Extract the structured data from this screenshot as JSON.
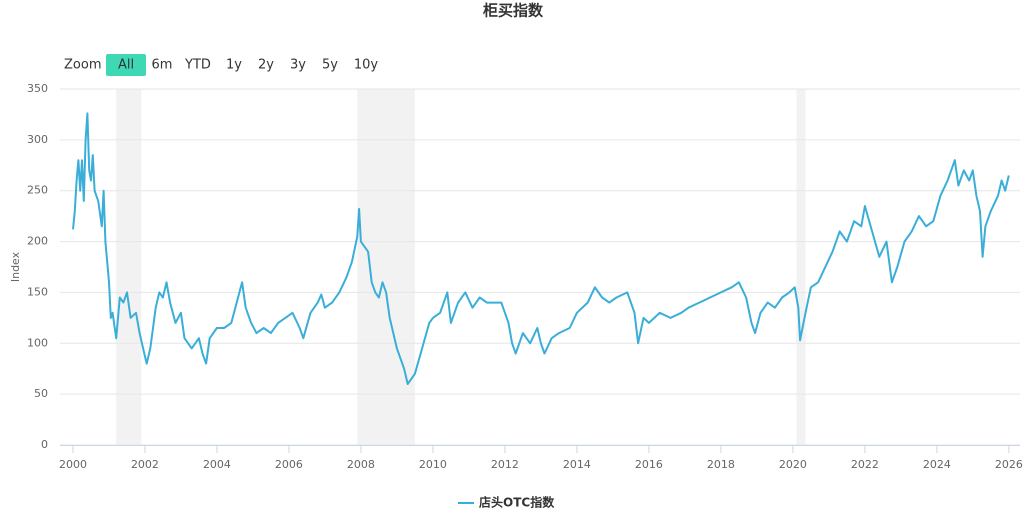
{
  "chart_data": {
    "type": "line",
    "title": "柜买指数",
    "range_selector": {
      "label": "Zoom",
      "buttons": [
        "All",
        "6m",
        "YTD",
        "1y",
        "2y",
        "3y",
        "5y",
        "10y"
      ],
      "selected": 0
    },
    "y_label": "Index",
    "xlim": [
      1999.64,
      2026.31
    ],
    "xticks": [
      2000,
      2002,
      2004,
      2006,
      2008,
      2010,
      2012,
      2014,
      2016,
      2018,
      2020,
      2022,
      2024,
      2026
    ],
    "ylim": [
      0,
      350
    ],
    "yticks": [
      0,
      50,
      100,
      150,
      200,
      250,
      300,
      350
    ],
    "grid": true,
    "plot_bands": [
      [
        2001.2,
        2001.9
      ],
      [
        2007.9,
        2009.5
      ],
      [
        2020.1,
        2020.35
      ]
    ],
    "x": [
      2000.0,
      2000.05,
      2000.1,
      2000.15,
      2000.2,
      2000.25,
      2000.3,
      2000.35,
      2000.4,
      2000.45,
      2000.5,
      2000.55,
      2000.6,
      2000.7,
      2000.8,
      2000.85,
      2000.9,
      2001.0,
      2001.05,
      2001.1,
      2001.2,
      2001.3,
      2001.4,
      2001.5,
      2001.6,
      2001.75,
      2001.85,
      2001.95,
      2002.05,
      2002.15,
      2002.3,
      2002.4,
      2002.5,
      2002.6,
      2002.7,
      2002.85,
      2003.0,
      2003.1,
      2003.2,
      2003.3,
      2003.5,
      2003.6,
      2003.7,
      2003.8,
      2004.0,
      2004.2,
      2004.4,
      2004.55,
      2004.7,
      2004.8,
      2004.95,
      2005.1,
      2005.3,
      2005.5,
      2005.7,
      2005.9,
      2006.1,
      2006.3,
      2006.4,
      2006.6,
      2006.8,
      2006.9,
      2007.0,
      2007.2,
      2007.4,
      2007.6,
      2007.75,
      2007.9,
      2007.95,
      2008.0,
      2008.1,
      2008.2,
      2008.3,
      2008.4,
      2008.5,
      2008.6,
      2008.7,
      2008.8,
      2008.9,
      2009.0,
      2009.2,
      2009.3,
      2009.5,
      2009.7,
      2009.9,
      2010.0,
      2010.2,
      2010.4,
      2010.5,
      2010.7,
      2010.9,
      2011.1,
      2011.3,
      2011.5,
      2011.7,
      2011.9,
      2012.1,
      2012.2,
      2012.3,
      2012.5,
      2012.7,
      2012.9,
      2013.0,
      2013.1,
      2013.3,
      2013.5,
      2013.8,
      2014.0,
      2014.3,
      2014.5,
      2014.7,
      2014.9,
      2015.1,
      2015.4,
      2015.6,
      2015.7,
      2015.85,
      2016.0,
      2016.3,
      2016.6,
      2016.9,
      2017.1,
      2017.4,
      2017.7,
      2018.0,
      2018.3,
      2018.5,
      2018.7,
      2018.85,
      2018.95,
      2019.1,
      2019.3,
      2019.5,
      2019.7,
      2019.9,
      2020.05,
      2020.15,
      2020.2,
      2020.35,
      2020.5,
      2020.7,
      2020.9,
      2021.1,
      2021.3,
      2021.5,
      2021.7,
      2021.9,
      2022.0,
      2022.2,
      2022.4,
      2022.6,
      2022.75,
      2022.9,
      2023.1,
      2023.3,
      2023.5,
      2023.7,
      2023.9,
      2024.1,
      2024.3,
      2024.5,
      2024.6,
      2024.75,
      2024.9,
      2025.0,
      2025.1,
      2025.2,
      2025.27,
      2025.35,
      2025.5,
      2025.7,
      2025.8,
      2025.9,
      2026.0
    ],
    "series": [
      {
        "name": "店头OTC指数",
        "color": "#3aaed8",
        "values": [
          212,
          230,
          260,
          280,
          250,
          280,
          240,
          300,
          326,
          270,
          260,
          285,
          250,
          240,
          215,
          250,
          200,
          160,
          125,
          130,
          105,
          145,
          140,
          150,
          125,
          130,
          110,
          95,
          80,
          95,
          135,
          150,
          145,
          160,
          140,
          120,
          130,
          105,
          100,
          95,
          105,
          90,
          80,
          105,
          115,
          115,
          120,
          140,
          160,
          135,
          120,
          110,
          115,
          110,
          120,
          125,
          130,
          115,
          105,
          130,
          140,
          148,
          135,
          140,
          150,
          165,
          180,
          205,
          232,
          200,
          195,
          190,
          160,
          150,
          145,
          160,
          150,
          125,
          110,
          95,
          75,
          60,
          70,
          95,
          120,
          125,
          130,
          150,
          120,
          140,
          150,
          135,
          145,
          140,
          140,
          140,
          120,
          100,
          90,
          110,
          100,
          115,
          100,
          90,
          105,
          110,
          115,
          130,
          140,
          155,
          145,
          140,
          145,
          150,
          130,
          100,
          125,
          120,
          130,
          125,
          130,
          135,
          140,
          145,
          150,
          155,
          160,
          145,
          120,
          110,
          130,
          140,
          135,
          145,
          150,
          155,
          135,
          103,
          130,
          155,
          160,
          175,
          190,
          210,
          200,
          220,
          215,
          235,
          210,
          185,
          200,
          160,
          175,
          200,
          210,
          225,
          215,
          220,
          245,
          260,
          280,
          255,
          270,
          260,
          270,
          245,
          230,
          185,
          215,
          230,
          245,
          260,
          250,
          265
        ]
      }
    ]
  }
}
